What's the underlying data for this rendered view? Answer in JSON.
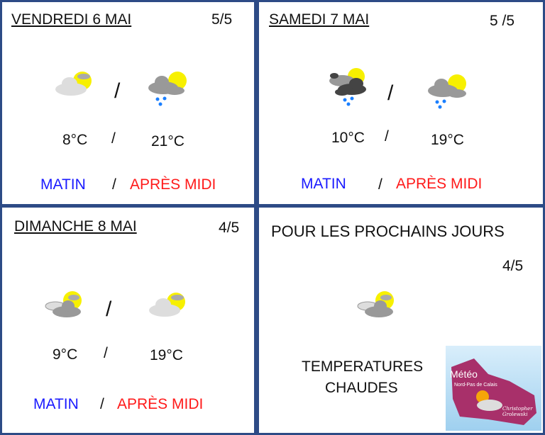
{
  "days": [
    {
      "title": "VENDREDI 6 MAI",
      "rating": "5/5",
      "morning_icon": "sun-behind-light-clouds",
      "afternoon_icon": "sun-clouds-showers",
      "temp_morning": "8°C",
      "temp_afternoon": "21°C",
      "separator": "/",
      "morning_label": "MATIN",
      "afternoon_label": "APRÈS MIDI"
    },
    {
      "title": "SAMEDI 7 MAI",
      "rating": "5 /5",
      "morning_icon": "dark-clouds-showers",
      "afternoon_icon": "sun-clouds-showers",
      "temp_morning": "10°C",
      "temp_afternoon": "19°C",
      "separator": "/",
      "morning_label": "MATIN",
      "afternoon_label": "APRÈS MIDI"
    },
    {
      "title": "DIMANCHE 8 MAI",
      "rating": "4/5",
      "morning_icon": "sun-clouds",
      "afternoon_icon": "sun-behind-light-clouds",
      "temp_morning": "9°C",
      "temp_afternoon": "19°C",
      "separator": "/",
      "morning_label": "MATIN",
      "afternoon_label": "APRÈS MIDI"
    }
  ],
  "outlook": {
    "title": "POUR LES PROCHAINS JOURS",
    "rating": "4/5",
    "icon": "sun-clouds",
    "text_line1": "TEMPERATURES",
    "text_line2": "CHAUDES"
  },
  "logo": {
    "title": "Météo",
    "subtitle": "Nord-Pas de Calais",
    "author": "Christopher Grolewski"
  },
  "colors": {
    "background": "#2d4b86",
    "morning": "#1a1aff",
    "afternoon": "#ff1a1a",
    "sun": "#f7f000"
  }
}
